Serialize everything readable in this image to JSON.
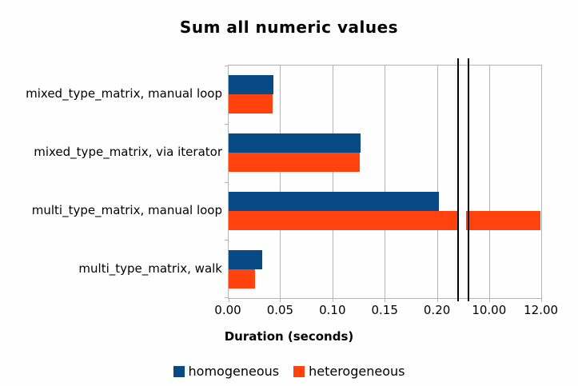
{
  "chart_data": {
    "type": "bar",
    "orientation": "horizontal",
    "title": "Sum all numeric values",
    "xlabel": "Duration (seconds)",
    "categories": [
      "mixed_type_matrix, manual loop",
      "mixed_type_matrix, via iterator",
      "multi_type_matrix, manual loop",
      "multi_type_matrix, walk"
    ],
    "series": [
      {
        "name": "homogeneous",
        "color": "#074a85",
        "values": [
          0.043,
          0.126,
          0.201,
          0.032
        ]
      },
      {
        "name": "heterogeneous",
        "color": "#ff420e",
        "values": [
          0.042,
          0.125,
          11.95,
          0.025
        ]
      }
    ],
    "axis": {
      "ticks": [
        {
          "value": 0.0,
          "label": "0.00"
        },
        {
          "value": 0.05,
          "label": "0.05"
        },
        {
          "value": 0.1,
          "label": "0.10"
        },
        {
          "value": 0.15,
          "label": "0.15"
        },
        {
          "value": 0.2,
          "label": "0.20"
        },
        {
          "value": 10.0,
          "label": "10.00"
        },
        {
          "value": 12.0,
          "label": "12.00"
        }
      ],
      "break": {
        "left_segment_max": 0.219,
        "right_segment_min": 9.08
      },
      "grid": true,
      "grid_color": "#b3b3b3",
      "break_mark_color": "#000000"
    },
    "legend_position": "bottom"
  }
}
